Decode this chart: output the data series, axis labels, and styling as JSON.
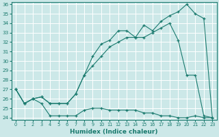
{
  "xlabel": "Humidex (Indice chaleur)",
  "bg_color": "#cce8e8",
  "grid_color": "#ffffff",
  "line_color": "#1a7a6e",
  "xlim": [
    -0.5,
    23.5
  ],
  "ylim": [
    23.8,
    36.2
  ],
  "xticks": [
    0,
    1,
    2,
    3,
    4,
    5,
    6,
    7,
    8,
    9,
    10,
    11,
    12,
    13,
    14,
    15,
    16,
    17,
    18,
    19,
    20,
    21,
    22,
    23
  ],
  "yticks": [
    24,
    25,
    26,
    27,
    28,
    29,
    30,
    31,
    32,
    33,
    34,
    35,
    36
  ],
  "series1_x": [
    0,
    1,
    2,
    3,
    4,
    5,
    6,
    7,
    8,
    9,
    10,
    11,
    12,
    13,
    14,
    15,
    16,
    17,
    18,
    19,
    20,
    21,
    22,
    23
  ],
  "series1_y": [
    27.0,
    25.5,
    26.0,
    25.5,
    24.2,
    24.2,
    24.2,
    24.2,
    24.8,
    25.0,
    25.0,
    24.8,
    24.8,
    24.8,
    24.8,
    24.5,
    24.5,
    24.2,
    24.2,
    24.0,
    24.0,
    24.2,
    24.0,
    24.0
  ],
  "series2_x": [
    0,
    1,
    2,
    3,
    4,
    5,
    6,
    7,
    8,
    9,
    10,
    11,
    12,
    13,
    14,
    15,
    16,
    17,
    18,
    19,
    20,
    21,
    22,
    23
  ],
  "series2_y": [
    27.0,
    25.5,
    26.0,
    26.2,
    25.5,
    25.5,
    25.5,
    26.5,
    28.5,
    29.5,
    30.5,
    31.5,
    32.0,
    32.5,
    32.5,
    32.5,
    33.0,
    33.5,
    34.0,
    32.2,
    28.5,
    28.5,
    24.2,
    24.0
  ],
  "series3_x": [
    0,
    1,
    2,
    3,
    4,
    5,
    6,
    7,
    8,
    9,
    10,
    11,
    12,
    13,
    14,
    15,
    16,
    17,
    18,
    19,
    20,
    21,
    22,
    23
  ],
  "series3_y": [
    27.0,
    25.5,
    26.0,
    26.2,
    25.5,
    25.5,
    25.5,
    26.5,
    28.5,
    30.5,
    31.8,
    32.2,
    33.2,
    33.2,
    32.5,
    33.8,
    33.2,
    34.2,
    34.8,
    35.2,
    36.0,
    35.0,
    34.5,
    24.0
  ]
}
